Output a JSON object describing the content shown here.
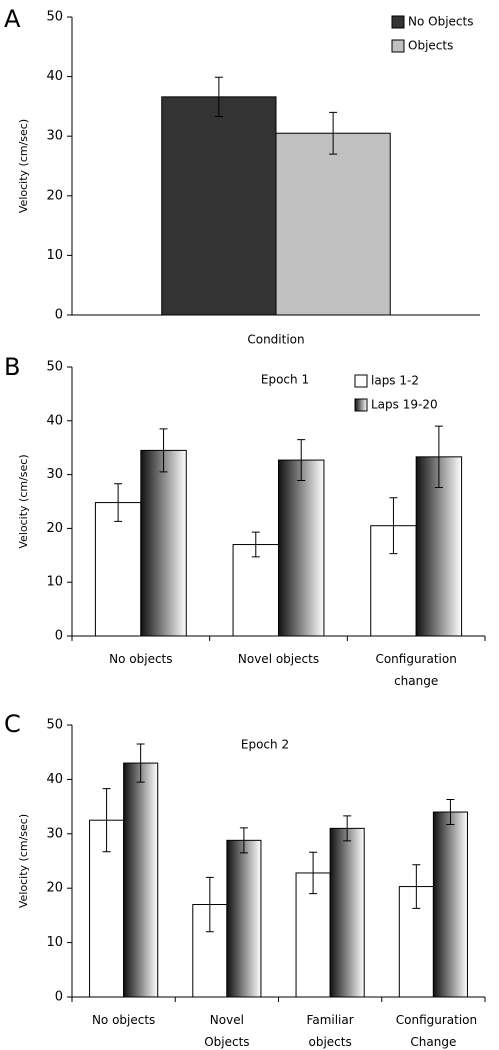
{
  "chart_data": [
    {
      "type": "bar",
      "panel_label": "A",
      "y_label": "Velocity (cm/sec)",
      "x_label": "Condition",
      "categories": [
        null
      ],
      "series": [
        {
          "name": "No Objects",
          "color": "#333333",
          "values": [
            36.6
          ],
          "errors": [
            3.3
          ]
        },
        {
          "name": "Objects",
          "color": "#c0c0c0",
          "values": [
            30.5
          ],
          "errors": [
            3.5
          ]
        }
      ],
      "ylim": [
        0,
        50
      ],
      "yticks": [
        0,
        10,
        20,
        30,
        40,
        50
      ],
      "legend": "top-right"
    },
    {
      "type": "bar",
      "panel_label": "B",
      "title": "Epoch 1",
      "y_label": "Velocity (cm/sec)",
      "categories": [
        "No objects",
        "Novel objects",
        "Configuration change"
      ],
      "series": [
        {
          "name": "laps 1-2",
          "color": "#ffffff",
          "values": [
            24.8,
            17.0,
            20.5
          ],
          "errors": [
            3.5,
            2.3,
            5.2
          ]
        },
        {
          "name": "Laps 19-20",
          "color": [
            "#111111",
            "#ffffff"
          ],
          "values": [
            34.5,
            32.7,
            33.3
          ],
          "errors": [
            4.0,
            3.8,
            5.7
          ]
        }
      ],
      "ylim": [
        0,
        50
      ],
      "yticks": [
        0,
        10,
        20,
        30,
        40,
        50
      ],
      "legend": "top-right"
    },
    {
      "type": "bar",
      "panel_label": "C",
      "title": "Epoch 2",
      "y_label": "Velocity (cm/sec)",
      "categories": [
        "No objects",
        "Novel Objects",
        "Familiar objects",
        "Configuration Change"
      ],
      "series": [
        {
          "color": "#ffffff",
          "values": [
            32.5,
            17.0,
            22.8,
            20.3
          ],
          "errors": [
            5.8,
            5.0,
            3.8,
            4.0
          ]
        },
        {
          "color": [
            "#111111",
            "#ffffff"
          ],
          "values": [
            43.0,
            28.8,
            31.0,
            34.0
          ],
          "errors": [
            3.5,
            2.3,
            2.3,
            2.3
          ]
        }
      ],
      "ylim": [
        0,
        50
      ],
      "yticks": [
        0,
        10,
        20,
        30,
        40,
        50
      ]
    }
  ]
}
